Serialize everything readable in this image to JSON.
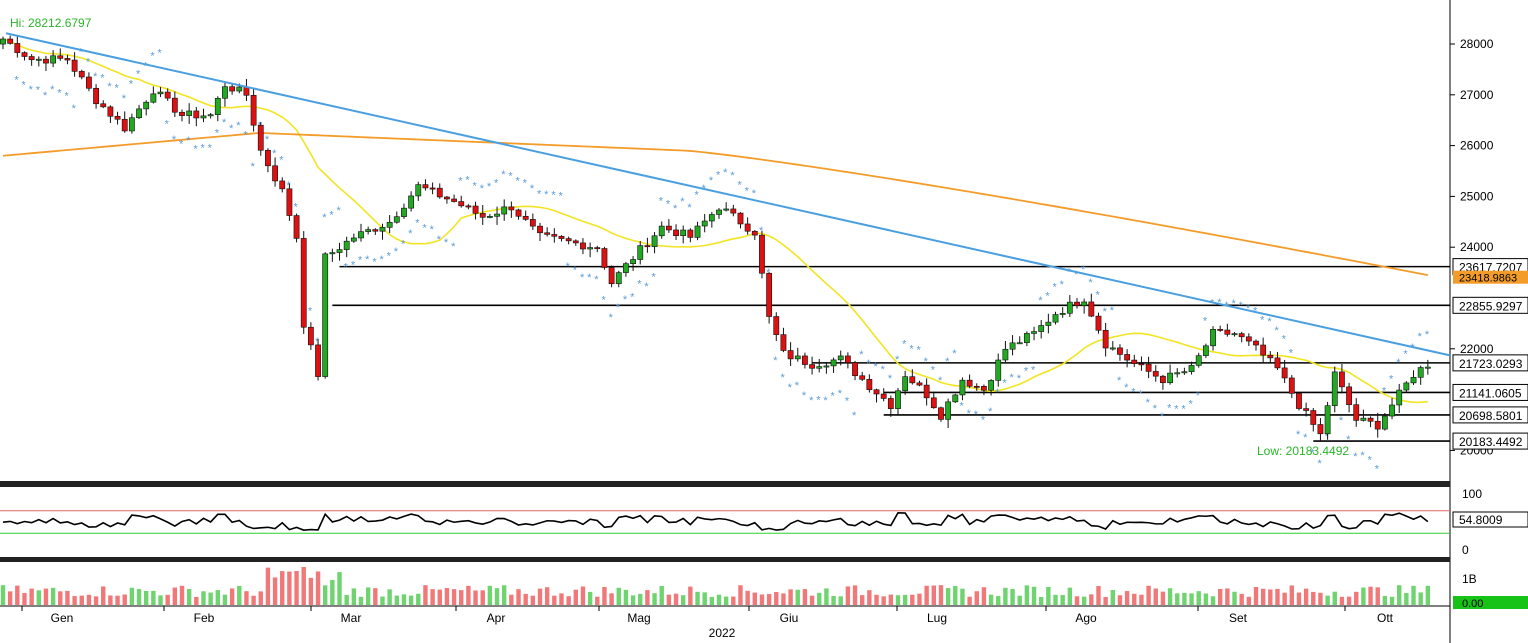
{
  "chart_data": {
    "type": "candlestick",
    "title": "",
    "xlabel": "2022",
    "x_tick_labels": [
      "Gen",
      "Feb",
      "Mar",
      "Apr",
      "Mag",
      "Giu",
      "Lug",
      "Ago",
      "Set",
      "Ott"
    ],
    "price_axis": {
      "ticks": [
        "28000",
        "27000",
        "26000",
        "25000",
        "24000",
        "22000",
        "20000"
      ],
      "range": [
        19450,
        28500
      ]
    },
    "hi_label": "Hi: 28212.6797",
    "low_label": "Low: 20183.4492",
    "levels": [
      {
        "label": "23617.7207",
        "value": 23617.72
      },
      {
        "label": "22855.9297",
        "value": 22855.93
      },
      {
        "label": "21723.0293",
        "value": 21723.03
      },
      {
        "label": "21141.0605",
        "value": 21141.06
      },
      {
        "label": "20698.5801",
        "value": 20698.58
      },
      {
        "label": "20183.4492",
        "value": 20183.45
      }
    ],
    "ma_label": "23418.9863",
    "trendline": {
      "from": 28212,
      "to": 21870
    },
    "colors": {
      "up": "#22a822",
      "down": "#dd1111",
      "fast_ma": "#f2e422",
      "slow_ma": "#f39c2a",
      "trend": "#4a9fe0",
      "psar": "#5b9bd5"
    },
    "rsi": {
      "axis_ticks": [
        "100",
        "0"
      ],
      "value_label": "54.8009",
      "upper": 70,
      "lower": 30
    },
    "volume": {
      "axis_ticks": [
        "1B"
      ],
      "value_label": "0.00"
    }
  }
}
